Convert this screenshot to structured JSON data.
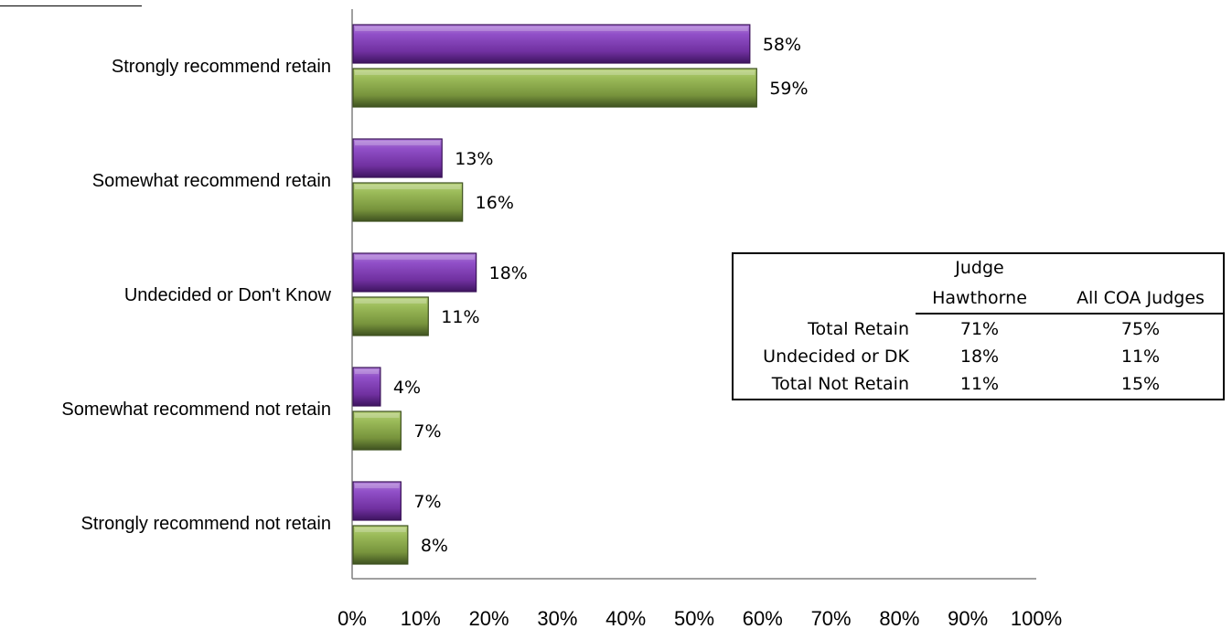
{
  "chart_data": {
    "type": "bar",
    "orientation": "horizontal",
    "categories": [
      "Strongly recommend retain",
      "Somewhat recommend retain",
      "Undecided or Don't Know",
      "Somewhat recommend not retain",
      "Strongly recommend not retain"
    ],
    "series": [
      {
        "values": [
          58,
          13,
          18,
          4,
          7
        ],
        "labels": [
          "58%",
          "13%",
          "18%",
          "4%",
          "7%"
        ],
        "color": "#7030a0"
      },
      {
        "values": [
          59,
          16,
          11,
          7,
          8
        ],
        "labels": [
          "59%",
          "16%",
          "11%",
          "7%",
          "8%"
        ],
        "color": "#77933c"
      }
    ],
    "xlim": [
      0,
      100
    ],
    "x_ticks": [
      "0%",
      "10%",
      "20%",
      "30%",
      "40%",
      "50%",
      "60%",
      "70%",
      "80%",
      "90%",
      "100%"
    ],
    "grid": false,
    "legend": "none"
  },
  "summary_table": {
    "header": [
      "",
      "Judge\nHawthorne",
      "All COA Judges"
    ],
    "header_line1": [
      "",
      "Judge",
      ""
    ],
    "header_line2": [
      "",
      "Hawthorne",
      "All COA Judges"
    ],
    "rows": [
      [
        "Total Retain",
        "71%",
        "75%"
      ],
      [
        "Undecided or DK",
        "18%",
        "11%"
      ],
      [
        "Total Not Retain",
        "11%",
        "15%"
      ]
    ]
  }
}
